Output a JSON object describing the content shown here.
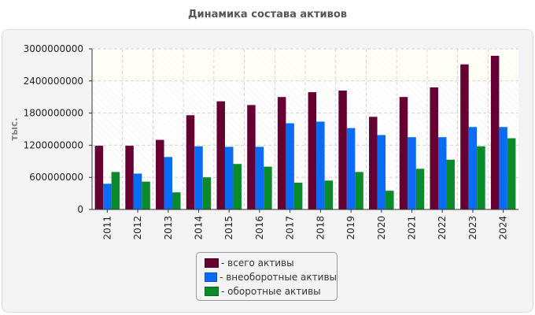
{
  "chart_data": {
    "type": "bar",
    "title": "Динамика состава активов",
    "ylabel": "тыс.",
    "xlabel": "",
    "ylim": [
      0,
      3000000000
    ],
    "yticks": [
      "0",
      "600000000",
      "1200000000",
      "1800000000",
      "2400000000",
      "3000000000"
    ],
    "categories": [
      "2011",
      "2012",
      "2013",
      "2014",
      "2015",
      "2016",
      "2017",
      "2018",
      "2019",
      "2020",
      "2021",
      "2022",
      "2023",
      "2024"
    ],
    "series": [
      {
        "name": "всего активы",
        "color": "#660033",
        "values": [
          1190000000,
          1190000000,
          1300000000,
          1760000000,
          2020000000,
          1950000000,
          2100000000,
          2190000000,
          2220000000,
          1730000000,
          2100000000,
          2280000000,
          2710000000,
          2870000000
        ]
      },
      {
        "name": "внеоборотные активы",
        "color": "#0a6cf5",
        "values": [
          480000000,
          670000000,
          980000000,
          1180000000,
          1170000000,
          1170000000,
          1610000000,
          1640000000,
          1520000000,
          1390000000,
          1350000000,
          1350000000,
          1540000000,
          1540000000
        ]
      },
      {
        "name": "оборотные активы",
        "color": "#0b8a2a",
        "values": [
          700000000,
          520000000,
          320000000,
          600000000,
          850000000,
          800000000,
          500000000,
          540000000,
          700000000,
          350000000,
          760000000,
          930000000,
          1180000000,
          1330000000
        ]
      }
    ]
  },
  "legend": {
    "items": [
      {
        "label": "- всего активы",
        "color": "#660033"
      },
      {
        "label": "- внеоборотные активы",
        "color": "#0a6cf5"
      },
      {
        "label": "- оборотные активы",
        "color": "#0b8a2a"
      }
    ]
  }
}
